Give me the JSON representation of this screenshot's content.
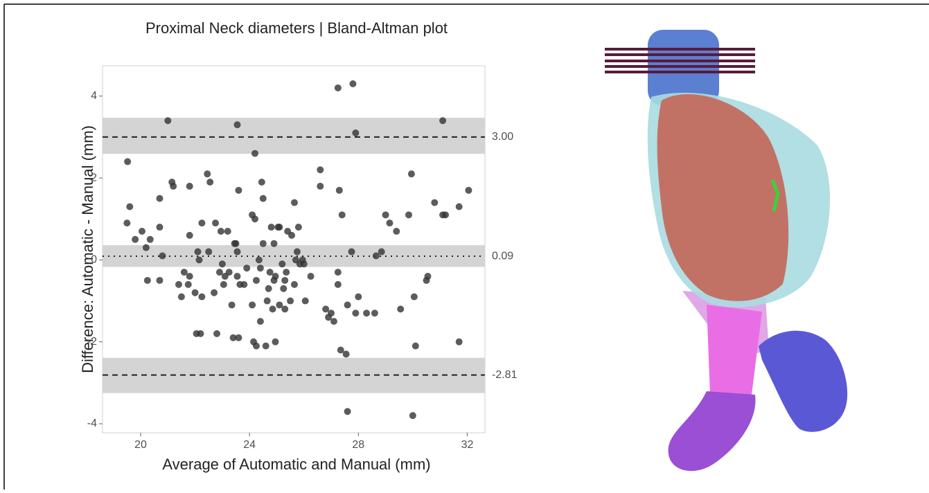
{
  "chart_data": {
    "type": "scatter",
    "title": "Proximal Neck diameters | Bland-Altman plot",
    "x_label": "Average of Automatic and Manual (mm)",
    "y_label": "Difference: Automatic - Manual (mm)",
    "xlim": [
      18.6,
      32.65
    ],
    "ylim": [
      -4.22,
      4.74
    ],
    "xticks": [
      20,
      24,
      28,
      32
    ],
    "yticks": [
      -4,
      -2,
      0,
      2,
      4
    ],
    "color": "#333333",
    "bands": [
      {
        "low": 2.59,
        "high": 3.47
      },
      {
        "low": -0.17,
        "high": 0.36
      },
      {
        "low": -3.25,
        "high": -2.39
      }
    ],
    "reference_lines": [
      {
        "value": 3.0,
        "label": "3.00",
        "style": "dashed"
      },
      {
        "value": 0.09,
        "label": "0.09",
        "style": "dotted"
      },
      {
        "value": -2.81,
        "label": "-2.81",
        "style": "dashed"
      }
    ],
    "x": [
      19.52,
      19.5,
      19.6,
      19.8,
      20.05,
      20.2,
      20.25,
      20.35,
      20.7,
      20.7,
      20.7,
      20.8,
      21.0,
      21.15,
      21.2,
      21.4,
      21.5,
      21.6,
      21.75,
      21.8,
      21.8,
      21.8,
      22.0,
      22.05,
      22.1,
      22.15,
      22.2,
      22.25,
      22.25,
      22.45,
      22.5,
      22.55,
      22.7,
      22.75,
      22.8,
      22.9,
      22.95,
      23.0,
      23.05,
      23.1,
      23.2,
      23.25,
      23.35,
      23.4,
      23.45,
      23.5,
      23.55,
      23.55,
      23.55,
      23.6,
      23.6,
      23.65,
      23.8,
      23.9,
      24.1,
      24.1,
      24.15,
      24.2,
      24.2,
      24.25,
      24.25,
      24.35,
      24.4,
      24.4,
      24.45,
      24.5,
      24.5,
      24.6,
      24.65,
      24.7,
      24.75,
      24.8,
      24.85,
      24.9,
      24.9,
      24.95,
      24.95,
      25.05,
      25.1,
      25.1,
      25.2,
      25.25,
      25.3,
      25.3,
      25.35,
      25.4,
      25.5,
      25.55,
      25.65,
      25.65,
      25.7,
      25.75,
      25.8,
      25.85,
      25.95,
      26.0,
      26.05,
      26.25,
      26.6,
      26.6,
      26.8,
      26.9,
      27.0,
      27.1,
      27.25,
      27.25,
      27.25,
      27.3,
      27.35,
      27.4,
      27.55,
      27.6,
      27.6,
      27.75,
      27.8,
      27.9,
      27.9,
      28.0,
      28.3,
      28.6,
      28.65,
      28.85,
      29.0,
      29.15,
      29.4,
      29.55,
      29.85,
      29.95,
      30.0,
      30.05,
      30.1,
      30.5,
      30.55,
      30.8,
      31.1,
      31.1,
      31.2,
      31.7,
      31.7,
      32.05
    ],
    "values": [
      2.4,
      0.9,
      1.3,
      0.5,
      0.7,
      0.3,
      -0.5,
      0.5,
      1.5,
      0.8,
      -0.5,
      0.1,
      3.4,
      1.9,
      1.8,
      -0.6,
      -0.9,
      -0.3,
      -0.6,
      1.8,
      0.6,
      -0.4,
      -0.8,
      -1.8,
      0.2,
      0,
      -1.8,
      0.9,
      -0.9,
      2.1,
      0.2,
      1.9,
      -0.8,
      0.9,
      -1.8,
      -0.3,
      0.7,
      -0.1,
      -0.6,
      -0.4,
      0.7,
      -0.3,
      -1.1,
      -1.9,
      0.4,
      0.4,
      -0.4,
      3.3,
      0.2,
      1.7,
      -1.9,
      -0.6,
      -0.6,
      -0.2,
      1.1,
      -1.1,
      -2.0,
      1.0,
      2.6,
      -2.1,
      -0.5,
      0,
      -1.5,
      -0.2,
      1.9,
      1.5,
      0.4,
      -2.1,
      -1.0,
      -0.7,
      -0.3,
      0.8,
      -1.2,
      -0.5,
      0.4,
      -0.4,
      -2.0,
      0.8,
      -1.1,
      0.8,
      -0.1,
      -0.7,
      -0.5,
      -1.2,
      -0.3,
      0.7,
      -1.0,
      0.6,
      1.4,
      -0.6,
      0,
      0.2,
      0.8,
      -0.1,
      0,
      -0.1,
      -1.0,
      -0.4,
      2.2,
      1.8,
      -1.2,
      -1.4,
      -1.3,
      -1.5,
      4.2,
      -0.6,
      -0.3,
      1.7,
      -2.2,
      1.1,
      -2.3,
      -1.1,
      -3.7,
      0.2,
      4.3,
      3.1,
      -1.3,
      -0.9,
      -1.3,
      -1.3,
      0.1,
      0.2,
      1.1,
      0.9,
      0.7,
      -1.2,
      1.1,
      2.1,
      -3.8,
      -0.9,
      -2.1,
      -0.5,
      -0.4,
      1.4,
      3.4,
      1.1,
      1.1,
      -2.0,
      1.3,
      1.7
    ]
  }
}
